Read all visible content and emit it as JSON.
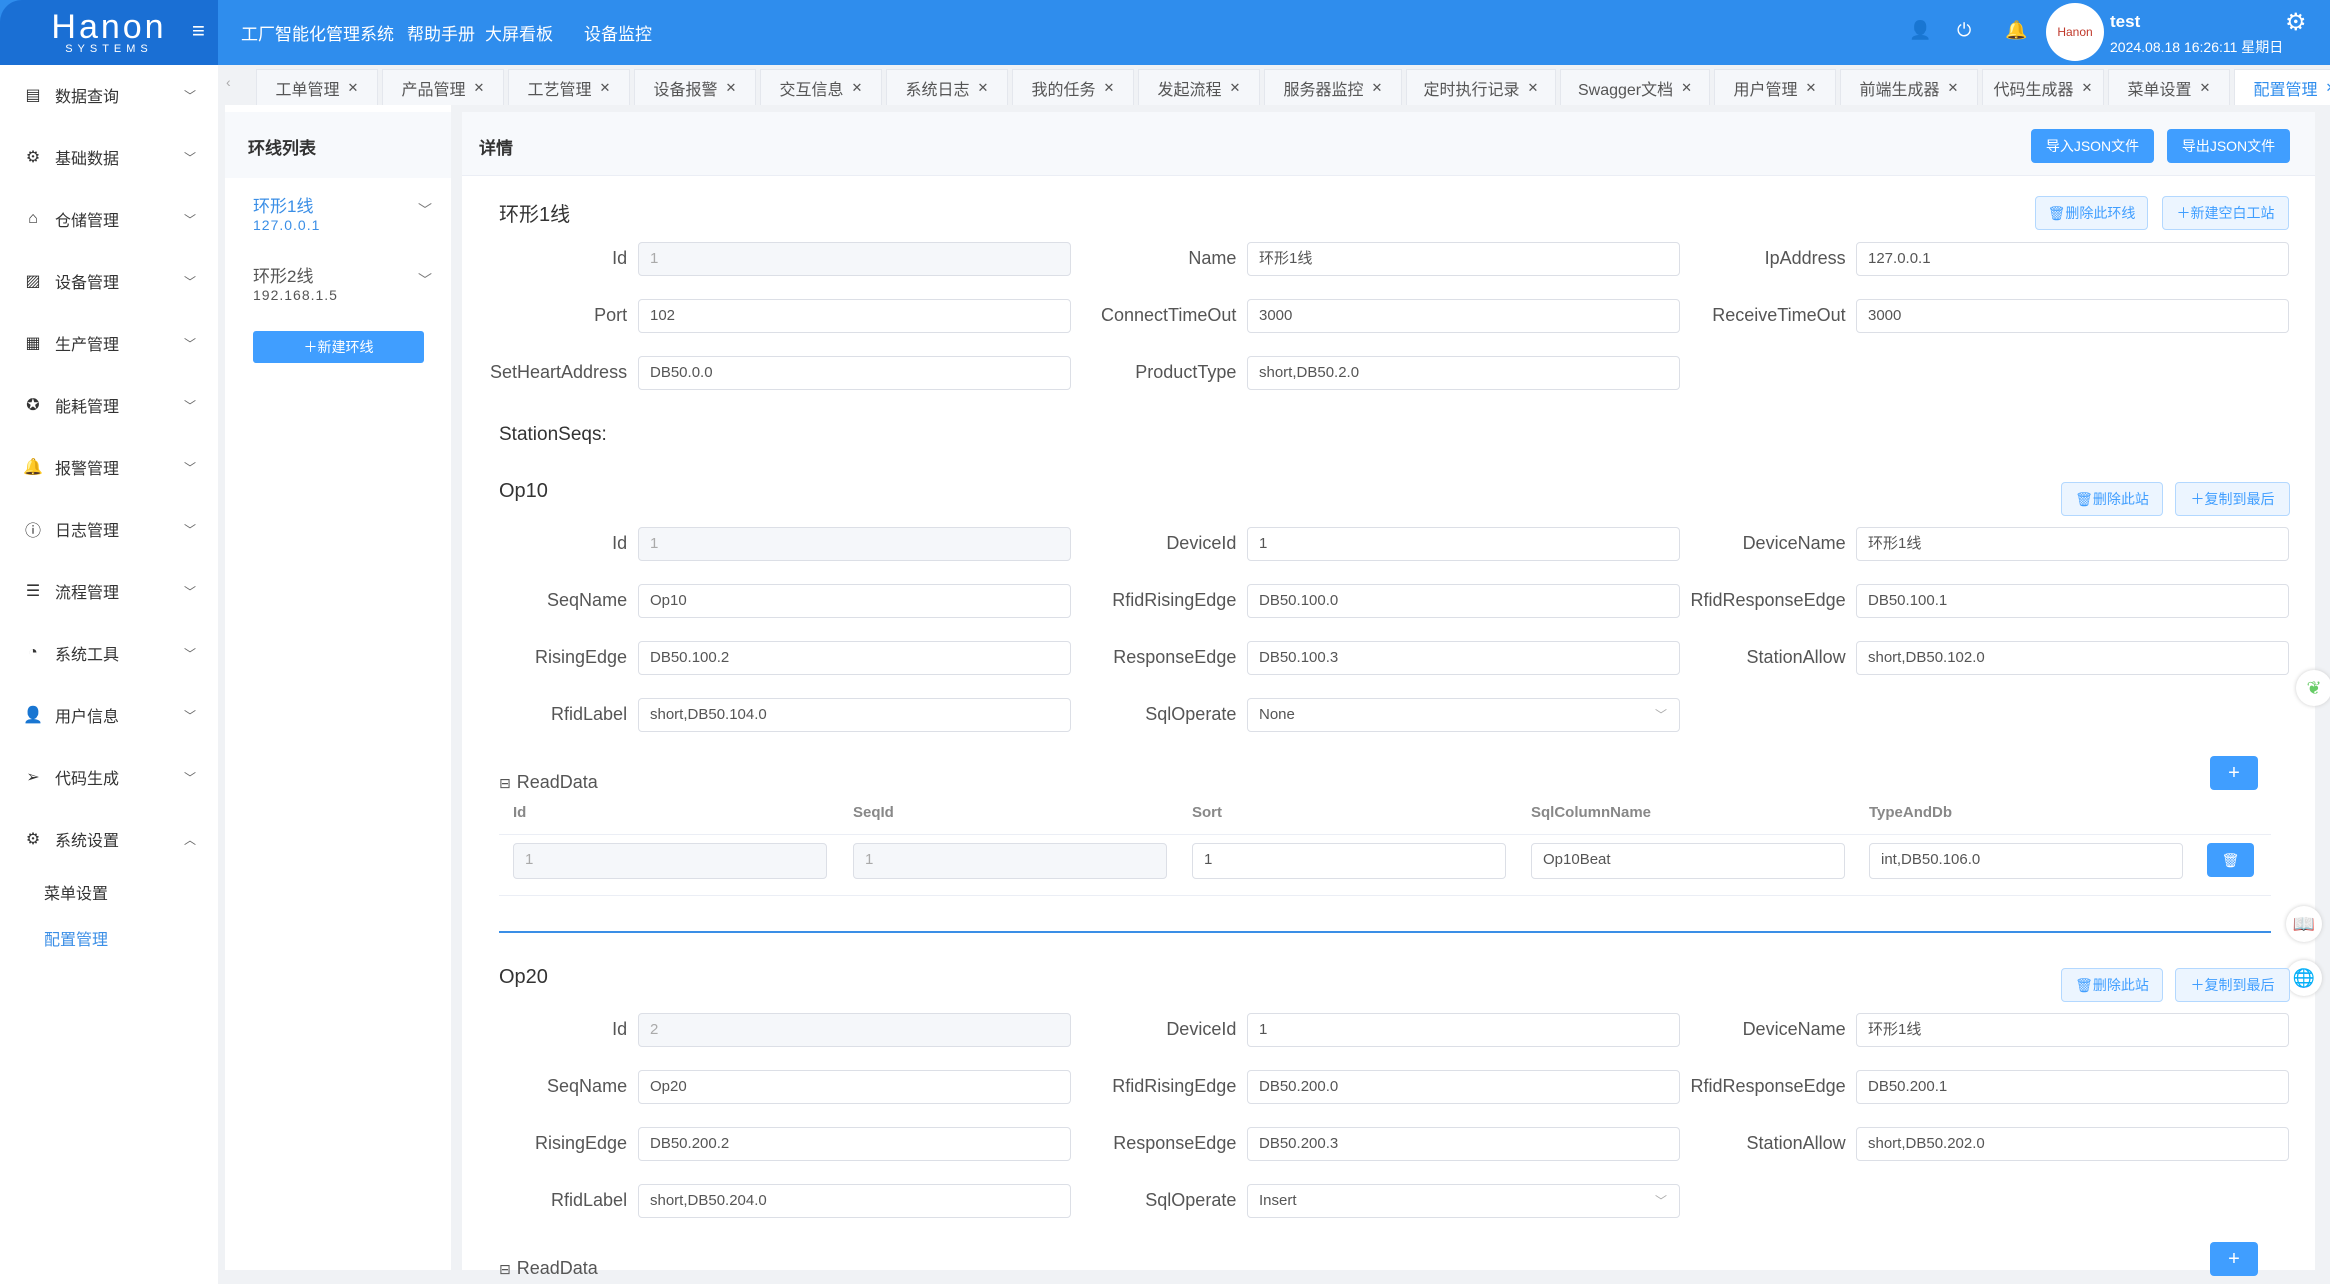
{
  "header": {
    "logo_top": "Hanon",
    "logo_bottom": "SYSTEMS",
    "nav": [
      "工厂智能化管理系统",
      "帮助手册",
      "大屏看板",
      "设备监控"
    ],
    "user": "test",
    "datetime": "2024.08.18 16:26:11 星期日",
    "avatar_text": "Hanon"
  },
  "sidebar": {
    "items": [
      {
        "label": "数据查询",
        "icon": "list-icon",
        "g": "▤"
      },
      {
        "label": "基础数据",
        "icon": "gear-icon",
        "g": "⚙"
      },
      {
        "label": "仓储管理",
        "icon": "home-icon",
        "g": "⌂"
      },
      {
        "label": "设备管理",
        "icon": "chart-icon",
        "g": "▨"
      },
      {
        "label": "生产管理",
        "icon": "grid-icon",
        "g": "▦"
      },
      {
        "label": "能耗管理",
        "icon": "energy-icon",
        "g": "✪"
      },
      {
        "label": "报警管理",
        "icon": "bell-icon",
        "g": "🔔"
      },
      {
        "label": "日志管理",
        "icon": "info-icon",
        "g": "ⓘ"
      },
      {
        "label": "流程管理",
        "icon": "sliders-icon",
        "g": "☰"
      },
      {
        "label": "系统工具",
        "icon": "gauge-icon",
        "g": "◔"
      },
      {
        "label": "用户信息",
        "icon": "user-icon",
        "g": "👤"
      },
      {
        "label": "代码生成",
        "icon": "send-icon",
        "g": "➢"
      },
      {
        "label": "系统设置",
        "icon": "settings-icon",
        "g": "⚙"
      }
    ],
    "subitems": [
      "菜单设置",
      "配置管理"
    ],
    "active_sub": "配置管理"
  },
  "tabs": [
    "工单管理",
    "产品管理",
    "工艺管理",
    "设备报警",
    "交互信息",
    "系统日志",
    "我的任务",
    "发起流程",
    "服务器监控",
    "定时执行记录",
    "Swagger文档",
    "用户管理",
    "前端生成器",
    "代码生成器",
    "菜单设置",
    "配置管理"
  ],
  "active_tab": "配置管理",
  "left_panel": {
    "title": "环线列表",
    "lines": [
      {
        "name": "环形1线",
        "ip": "127.0.0.1"
      },
      {
        "name": "环形2线",
        "ip": "192.168.1.5"
      }
    ],
    "new_button": "＋新建环线"
  },
  "detail": {
    "title": "详情",
    "import_button": "导入JSON文件",
    "export_button": "导出JSON文件",
    "line_title": "环形1线",
    "delete_line_button": "🗑删除此环线",
    "new_station_button": "＋新建空白工站",
    "line_fields": [
      {
        "label": "Id",
        "value": "1",
        "disabled": true
      },
      {
        "label": "Name",
        "value": "环形1线"
      },
      {
        "label": "IpAddress",
        "value": "127.0.0.1"
      },
      {
        "label": "Port",
        "value": "102"
      },
      {
        "label": "ConnectTimeOut",
        "value": "3000"
      },
      {
        "label": "ReceiveTimeOut",
        "value": "3000"
      },
      {
        "label": "SetHeartAddress",
        "value": "DB50.0.0"
      },
      {
        "label": "ProductType",
        "value": "short,DB50.2.0"
      }
    ],
    "station_seqs_label": "StationSeqs:",
    "delete_station_button": "🗑删除此站",
    "copy_button": "＋复制到最后",
    "readdata_label": "ReadData",
    "add_button": "+",
    "readdata_columns": [
      "Id",
      "SeqId",
      "Sort",
      "SqlColumnName",
      "TypeAndDb"
    ],
    "stations": [
      {
        "title": "Op10",
        "fields": [
          {
            "label": "Id",
            "value": "1",
            "disabled": true
          },
          {
            "label": "DeviceId",
            "value": "1"
          },
          {
            "label": "DeviceName",
            "value": "环形1线"
          },
          {
            "label": "SeqName",
            "value": "Op10"
          },
          {
            "label": "RfidRisingEdge",
            "value": "DB50.100.0"
          },
          {
            "label": "RfidResponseEdge",
            "value": "DB50.100.1"
          },
          {
            "label": "RisingEdge",
            "value": "DB50.100.2"
          },
          {
            "label": "ResponseEdge",
            "value": "DB50.100.3"
          },
          {
            "label": "StationAllow",
            "value": "short,DB50.102.0"
          },
          {
            "label": "RfidLabel",
            "value": "short,DB50.104.0"
          },
          {
            "label": "SqlOperate",
            "value": "None",
            "select": true
          }
        ],
        "readdata": [
          [
            "1",
            "1",
            "1",
            "Op10Beat",
            "int,DB50.106.0"
          ]
        ]
      },
      {
        "title": "Op20",
        "fields": [
          {
            "label": "Id",
            "value": "2",
            "disabled": true
          },
          {
            "label": "DeviceId",
            "value": "1"
          },
          {
            "label": "DeviceName",
            "value": "环形1线"
          },
          {
            "label": "SeqName",
            "value": "Op20"
          },
          {
            "label": "RfidRisingEdge",
            "value": "DB50.200.0"
          },
          {
            "label": "RfidResponseEdge",
            "value": "DB50.200.1"
          },
          {
            "label": "RisingEdge",
            "value": "DB50.200.2"
          },
          {
            "label": "ResponseEdge",
            "value": "DB50.200.3"
          },
          {
            "label": "StationAllow",
            "value": "short,DB50.202.0"
          },
          {
            "label": "RfidLabel",
            "value": "short,DB50.204.0"
          },
          {
            "label": "SqlOperate",
            "value": "Insert",
            "select": true
          }
        ],
        "readdata": []
      }
    ]
  },
  "colors": {
    "primary": "#409eff",
    "header": "#2f8ded",
    "divider": "#3a8ee6"
  }
}
